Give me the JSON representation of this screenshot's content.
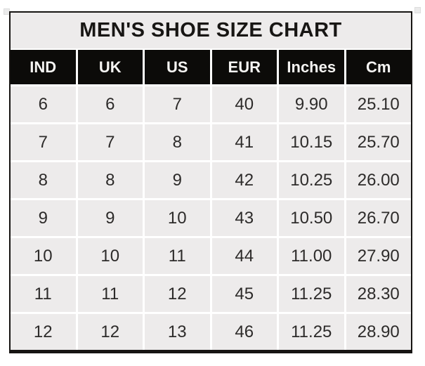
{
  "chart_data": {
    "type": "table",
    "title": "MEN'S SHOE SIZE CHART",
    "columns": [
      "IND",
      "UK",
      "US",
      "EUR",
      "Inches",
      "Cm"
    ],
    "rows": [
      [
        "6",
        "6",
        "7",
        "40",
        "9.90",
        "25.10"
      ],
      [
        "7",
        "7",
        "8",
        "41",
        "10.15",
        "25.70"
      ],
      [
        "8",
        "8",
        "9",
        "42",
        "10.25",
        "26.00"
      ],
      [
        "9",
        "9",
        "10",
        "43",
        "10.50",
        "26.70"
      ],
      [
        "10",
        "10",
        "11",
        "44",
        "11.00",
        "27.90"
      ],
      [
        "11",
        "11",
        "12",
        "45",
        "11.25",
        "28.30"
      ],
      [
        "12",
        "12",
        "13",
        "46",
        "11.25",
        "28.90"
      ]
    ],
    "legend": "none",
    "grid": "white gridlines between gray cells"
  },
  "colors": {
    "header_bg": "#0c0b09",
    "header_text": "#f5f4f2",
    "cell_bg": "#edebeb",
    "cell_text": "#2d2b2a",
    "grid_line": "#ffffff",
    "frame_border": "#161412"
  }
}
